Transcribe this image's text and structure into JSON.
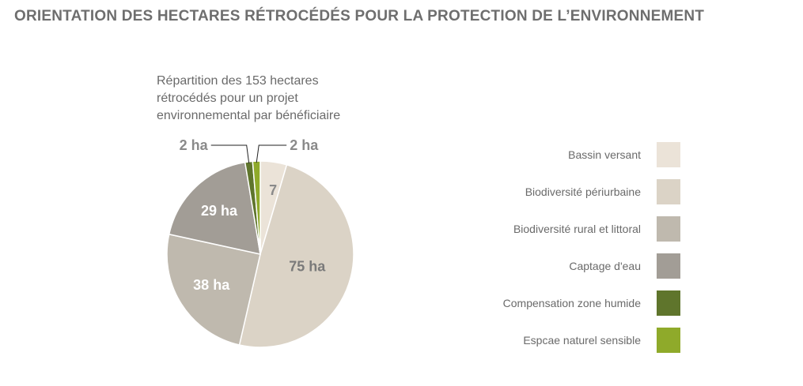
{
  "title": "ORIENTATION DES HECTARES RÉTROCÉDÉS POUR LA PROTECTION DE L’ENVIRONNEMENT",
  "chart_data": {
    "type": "pie",
    "subtitle_lines": [
      "Répartition des 153 hectares",
      "rétrocédés pour un projet",
      "environnemental par bénéficiaire"
    ],
    "slices": [
      {
        "name": "Bassin versant",
        "value": 7,
        "label": "7 ha",
        "color": "#ebe3d8"
      },
      {
        "name": "Biodiversité périurbaine",
        "value": 75,
        "label": "75 ha",
        "color": "#dbd3c6"
      },
      {
        "name": "Biodiversité rural et littoral",
        "value": 38,
        "label": "38 ha",
        "color": "#bfb9ae"
      },
      {
        "name": "Captage d'eau",
        "value": 29,
        "label": "29 ha",
        "color": "#a29d96"
      },
      {
        "name": "Compensation zone humide",
        "value": 2,
        "label": "2 ha",
        "color": "#5f752c"
      },
      {
        "name": "Espcae naturel sensible",
        "value": 2,
        "label": "2 ha",
        "color": "#8faa2a"
      }
    ],
    "legend_placement": "right"
  }
}
